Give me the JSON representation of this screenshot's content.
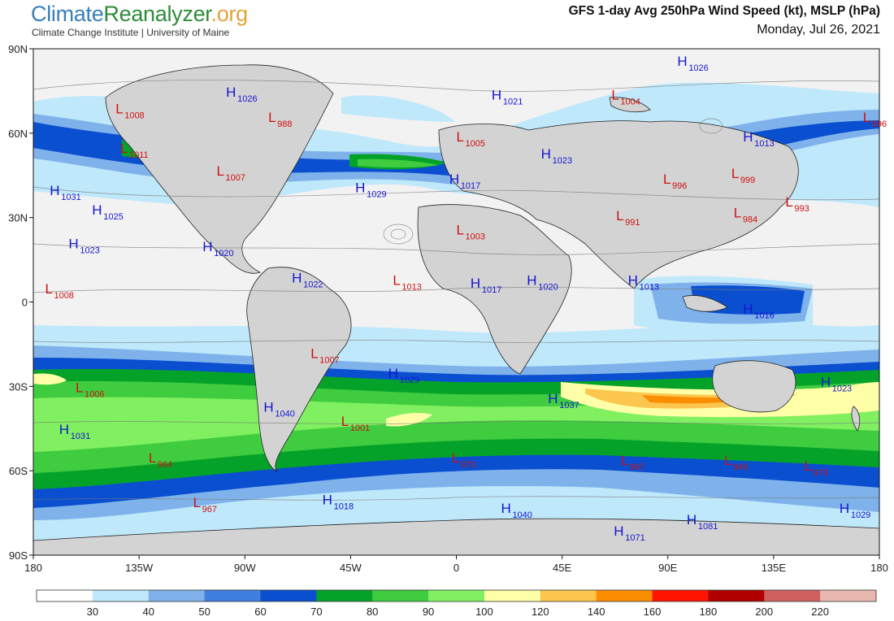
{
  "brand": {
    "part1": "Climate",
    "part2": "Reanalyzer",
    "part3": ".org",
    "subtitle": "Climate Change Institute | University of Maine"
  },
  "title": "GFS 1-day Avg 250hPa Wind Speed (kt), MSLP (hPa)",
  "date": "Monday, Jul 26, 2021",
  "axes": {
    "lat_labels": [
      {
        "value": 90,
        "label": "90N"
      },
      {
        "value": 60,
        "label": "60N"
      },
      {
        "value": 30,
        "label": "30N"
      },
      {
        "value": 0,
        "label": "0"
      },
      {
        "value": -30,
        "label": "30S"
      },
      {
        "value": -60,
        "label": "60S"
      },
      {
        "value": -90,
        "label": "90S"
      }
    ],
    "lon_labels": [
      {
        "value": -180,
        "label": "180"
      },
      {
        "value": -135,
        "label": "135W"
      },
      {
        "value": -90,
        "label": "90W"
      },
      {
        "value": -45,
        "label": "45W"
      },
      {
        "value": 0,
        "label": "0"
      },
      {
        "value": 45,
        "label": "45E"
      },
      {
        "value": 90,
        "label": "90E"
      },
      {
        "value": 135,
        "label": "135E"
      },
      {
        "value": 180,
        "label": "180"
      }
    ]
  },
  "colorbar": {
    "colors": [
      "#ffffff",
      "#bfe8fb",
      "#7fb2ea",
      "#3f7fdf",
      "#0a4fd0",
      "#05a22a",
      "#3fcc3f",
      "#80f060",
      "#ffffa8",
      "#fcc64e",
      "#fb8e00",
      "#ff1400",
      "#b00000",
      "#d06060",
      "#e8b8b0"
    ],
    "labels": [
      "30",
      "40",
      "50",
      "60",
      "70",
      "80",
      "90",
      "100",
      "120",
      "140",
      "160",
      "180",
      "200",
      "220"
    ]
  },
  "pressure_centers": [
    {
      "type": "H",
      "value": "1026",
      "lon": -98,
      "lat": 73
    },
    {
      "type": "H",
      "value": "1026",
      "lon": 94,
      "lat": 84
    },
    {
      "type": "H",
      "value": "1021",
      "lon": 15,
      "lat": 72
    },
    {
      "type": "H",
      "value": "1013",
      "lon": 122,
      "lat": 57
    },
    {
      "type": "H",
      "value": "1023",
      "lon": 36,
      "lat": 51
    },
    {
      "type": "H",
      "value": "1017",
      "lon": -3,
      "lat": 42
    },
    {
      "type": "H",
      "value": "1029",
      "lon": -43,
      "lat": 39
    },
    {
      "type": "H",
      "value": "1031",
      "lon": -173,
      "lat": 38
    },
    {
      "type": "H",
      "value": "1025",
      "lon": -155,
      "lat": 31
    },
    {
      "type": "H",
      "value": "1023",
      "lon": -165,
      "lat": 19
    },
    {
      "type": "H",
      "value": "1020",
      "lon": -108,
      "lat": 18
    },
    {
      "type": "H",
      "value": "1022",
      "lon": -70,
      "lat": 7
    },
    {
      "type": "H",
      "value": "1017",
      "lon": 6,
      "lat": 5
    },
    {
      "type": "H",
      "value": "1020",
      "lon": 30,
      "lat": 6
    },
    {
      "type": "H",
      "value": "1013",
      "lon": 73,
      "lat": 6
    },
    {
      "type": "H",
      "value": "1016",
      "lon": 122,
      "lat": -4
    },
    {
      "type": "H",
      "value": "1029",
      "lon": -29,
      "lat": -27
    },
    {
      "type": "H",
      "value": "1037",
      "lon": 39,
      "lat": -36
    },
    {
      "type": "H",
      "value": "1040",
      "lon": -82,
      "lat": -39
    },
    {
      "type": "H",
      "value": "1031",
      "lon": -169,
      "lat": -47
    },
    {
      "type": "H",
      "value": "1023",
      "lon": 155,
      "lat": -30
    },
    {
      "type": "H",
      "value": "1018",
      "lon": -57,
      "lat": -72
    },
    {
      "type": "H",
      "value": "1040",
      "lon": 19,
      "lat": -75
    },
    {
      "type": "H",
      "value": "1081",
      "lon": 98,
      "lat": -79
    },
    {
      "type": "H",
      "value": "1071",
      "lon": 67,
      "lat": -83
    },
    {
      "type": "H",
      "value": "1029",
      "lon": 163,
      "lat": -75
    },
    {
      "type": "L",
      "value": "1008",
      "lon": -145,
      "lat": 67
    },
    {
      "type": "L",
      "value": "988",
      "lon": -80,
      "lat": 64
    },
    {
      "type": "L",
      "value": "1011",
      "lon": -143,
      "lat": 53
    },
    {
      "type": "L",
      "value": "1007",
      "lon": -102,
      "lat": 45
    },
    {
      "type": "L",
      "value": "1004",
      "lon": 66,
      "lat": 72
    },
    {
      "type": "L",
      "value": "1005",
      "lon": 0,
      "lat": 57
    },
    {
      "type": "L",
      "value": "996",
      "lon": 173,
      "lat": 64
    },
    {
      "type": "L",
      "value": "996",
      "lon": 88,
      "lat": 42
    },
    {
      "type": "L",
      "value": "999",
      "lon": 117,
      "lat": 44
    },
    {
      "type": "L",
      "value": "991",
      "lon": 68,
      "lat": 29
    },
    {
      "type": "L",
      "value": "984",
      "lon": 118,
      "lat": 30
    },
    {
      "type": "L",
      "value": "993",
      "lon": 140,
      "lat": 34
    },
    {
      "type": "L",
      "value": "1003",
      "lon": 0,
      "lat": 24
    },
    {
      "type": "L",
      "value": "1013",
      "lon": -27,
      "lat": 6
    },
    {
      "type": "L",
      "value": "1008",
      "lon": -175,
      "lat": 3
    },
    {
      "type": "L",
      "value": "1007",
      "lon": -62,
      "lat": -20
    },
    {
      "type": "L",
      "value": "1006",
      "lon": -162,
      "lat": -32
    },
    {
      "type": "L",
      "value": "1001",
      "lon": -49,
      "lat": -44
    },
    {
      "type": "L",
      "value": "964",
      "lon": -131,
      "lat": -57
    },
    {
      "type": "L",
      "value": "967",
      "lon": -112,
      "lat": -73
    },
    {
      "type": "L",
      "value": "973",
      "lon": -2,
      "lat": -57
    },
    {
      "type": "L",
      "value": "967",
      "lon": 70,
      "lat": -58
    },
    {
      "type": "L",
      "value": "945",
      "lon": 114,
      "lat": -58
    },
    {
      "type": "L",
      "value": "973",
      "lon": 148,
      "lat": -60
    }
  ]
}
